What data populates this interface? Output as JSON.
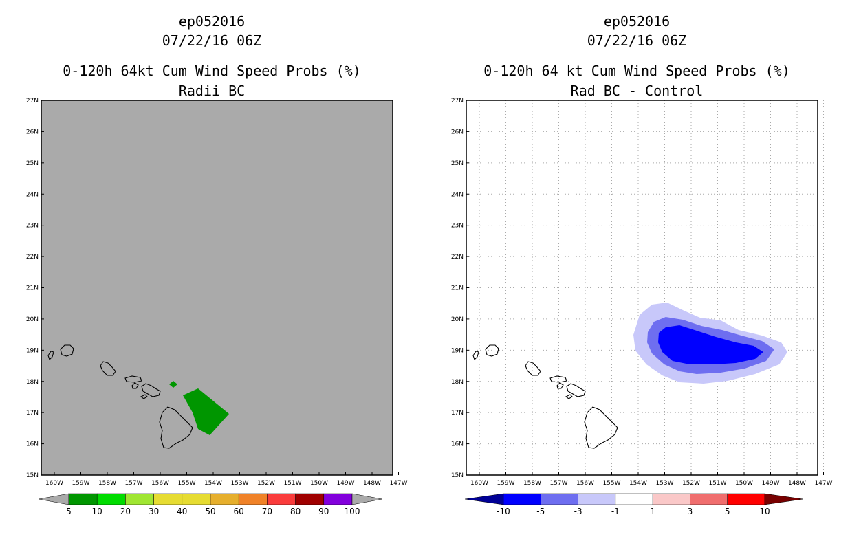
{
  "panels": [
    {
      "storm_id": "ep052016",
      "datetime": "07/22/16 06Z",
      "title": "0-120h 64kt Cum Wind Speed Probs (%)",
      "subtitle": "Radii BC",
      "background_color": "#aaaaaa",
      "colorbar": {
        "type": "probability",
        "labels": [
          "5",
          "10",
          "20",
          "30",
          "40",
          "50",
          "60",
          "70",
          "80",
          "90",
          "100"
        ],
        "colors": [
          "#009600",
          "#00dc00",
          "#a0e632",
          "#e6dc32",
          "#e6dc32",
          "#e6af2d",
          "#f08228",
          "#fa3c3c",
          "#a00000",
          "#8200dc"
        ],
        "arrow_color": "#aaaaaa"
      }
    },
    {
      "storm_id": "ep052016",
      "datetime": "07/22/16 06Z",
      "title": "0-120h 64 kt Cum Wind Speed Probs (%)",
      "subtitle": "Rad BC - Control",
      "background_color": "#ffffff",
      "colorbar": {
        "type": "difference",
        "labels": [
          "-10",
          "-5",
          "-3",
          "-1",
          "1",
          "3",
          "5",
          "10"
        ],
        "colors": [
          "#0000ff",
          "#6e6ef0",
          "#c8c8fa",
          "#ffffff",
          "#fac8c8",
          "#f06e6e",
          "#ff0000"
        ],
        "left_arrow_color": "#000096",
        "right_arrow_color": "#780000"
      }
    }
  ],
  "map": {
    "lat_labels": [
      "27N",
      "26N",
      "25N",
      "24N",
      "23N",
      "22N",
      "21N",
      "20N",
      "19N",
      "18N",
      "17N",
      "16N",
      "15N"
    ],
    "lon_labels": [
      "160W",
      "159W",
      "158W",
      "157W",
      "156W",
      "155W",
      "154W",
      "153W",
      "152W",
      "151W",
      "150W",
      "149W",
      "148W",
      "147W"
    ],
    "coast_color": "#000000",
    "grid_color": "#aaaaaa",
    "prob_fill_color": "#009600",
    "diff_fill_colors": [
      "#c8c8fa",
      "#6e6ef0",
      "#0000ff"
    ]
  }
}
